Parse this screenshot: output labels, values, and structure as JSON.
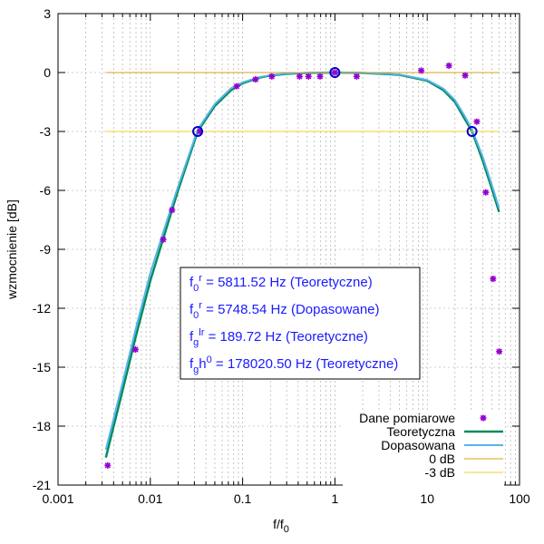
{
  "chart_data": {
    "type": "line",
    "xlabel": "f/f",
    "xlabel_sub": "0",
    "ylabel": "wzmocnienie [dB]",
    "xscale": "log",
    "xlim": [
      0.001,
      100
    ],
    "ylim": [
      -21,
      3
    ],
    "x_ticks": [
      "0.001",
      "0.01",
      "0.1",
      "1",
      "10",
      "100"
    ],
    "y_ticks": [
      "3",
      "0",
      "-3",
      "-6",
      "-9",
      "-12",
      "-15",
      "-18",
      "-21"
    ],
    "grid": true,
    "legend_position": "bottom-right",
    "annotations": [
      {
        "base": "f",
        "sub": "0",
        "sup": "r",
        "text": " = 5811.52 Hz (Teoretyczne)"
      },
      {
        "base": "f",
        "sub": "0",
        "sup": "r",
        "text": " = 5748.54 Hz (Dopasowane)"
      },
      {
        "base": "f",
        "sub": "g",
        "sup": "lr",
        "text": " = 189.72 Hz (Teoretyczne)"
      },
      {
        "base": "f",
        "sub": "g",
        "mid": "h",
        "sup": "0",
        "text": " = 178020.50 Hz (Teoretyczne)"
      }
    ],
    "series": [
      {
        "name": "Dane pomiarowe",
        "kind": "points",
        "color": "#9400d3",
        "points": [
          [
            0.00345,
            -20.0
          ],
          [
            0.0069,
            -14.1
          ],
          [
            0.0138,
            -8.5
          ],
          [
            0.0172,
            -7.0
          ],
          [
            0.0345,
            -3.0
          ],
          [
            0.0862,
            -0.7
          ],
          [
            0.138,
            -0.35
          ],
          [
            0.207,
            -0.2
          ],
          [
            0.414,
            -0.2
          ],
          [
            0.517,
            -0.2
          ],
          [
            0.69,
            -0.2
          ],
          [
            1.0,
            0.0
          ],
          [
            1.72,
            -0.2
          ],
          [
            8.62,
            0.1
          ],
          [
            17.2,
            0.35
          ],
          [
            25.8,
            -0.15
          ],
          [
            34.5,
            -2.5
          ],
          [
            43.1,
            -6.1
          ],
          [
            51.7,
            -10.5
          ],
          [
            60.3,
            -14.2
          ]
        ]
      },
      {
        "name": "Teoretyczna",
        "kind": "line",
        "color": "#008b5a",
        "points": [
          [
            0.0033,
            -19.6
          ],
          [
            0.005,
            -16.2
          ],
          [
            0.007,
            -13.4
          ],
          [
            0.01,
            -10.6
          ],
          [
            0.015,
            -7.9
          ],
          [
            0.02,
            -6.0
          ],
          [
            0.0326,
            -3.0
          ],
          [
            0.05,
            -1.7
          ],
          [
            0.075,
            -0.9
          ],
          [
            0.1,
            -0.55
          ],
          [
            0.15,
            -0.27
          ],
          [
            0.2,
            -0.15
          ],
          [
            0.3,
            -0.07
          ],
          [
            0.5,
            -0.02
          ],
          [
            1.0,
            0.0
          ],
          [
            2.0,
            -0.02
          ],
          [
            5.0,
            -0.12
          ],
          [
            10.0,
            -0.42
          ],
          [
            15.0,
            -0.9
          ],
          [
            20.0,
            -1.5
          ],
          [
            25.0,
            -2.3
          ],
          [
            30.6,
            -3.0
          ],
          [
            40.0,
            -4.5
          ],
          [
            50.0,
            -5.9
          ],
          [
            60.0,
            -7.1
          ]
        ]
      },
      {
        "name": "Dopasowana",
        "kind": "line",
        "color": "#56b4e9",
        "points": [
          [
            0.0033,
            -19.2
          ],
          [
            0.005,
            -15.8
          ],
          [
            0.007,
            -13.0
          ],
          [
            0.01,
            -10.2
          ],
          [
            0.015,
            -7.6
          ],
          [
            0.02,
            -5.8
          ],
          [
            0.0326,
            -2.9
          ],
          [
            0.05,
            -1.6
          ],
          [
            0.075,
            -0.8
          ],
          [
            0.1,
            -0.5
          ],
          [
            0.15,
            -0.24
          ],
          [
            0.2,
            -0.13
          ],
          [
            0.3,
            -0.05
          ],
          [
            0.5,
            -0.01
          ],
          [
            1.0,
            0.0
          ],
          [
            2.0,
            -0.01
          ],
          [
            5.0,
            -0.1
          ],
          [
            10.0,
            -0.38
          ],
          [
            15.0,
            -0.82
          ],
          [
            20.0,
            -1.4
          ],
          [
            25.0,
            -2.15
          ],
          [
            30.6,
            -2.9
          ],
          [
            40.0,
            -4.3
          ],
          [
            50.0,
            -5.7
          ],
          [
            60.0,
            -6.9
          ]
        ]
      },
      {
        "name": "0 dB",
        "kind": "line",
        "color": "#d4a017",
        "points": [
          [
            0.0033,
            0
          ],
          [
            60.0,
            0
          ]
        ]
      },
      {
        "name": "-3 dB",
        "kind": "line",
        "color": "#f0d020",
        "points": [
          [
            0.0033,
            -3
          ],
          [
            60.0,
            -3
          ]
        ]
      }
    ],
    "markers": {
      "color": "#0000cd",
      "points": [
        [
          0.0326,
          -3.0
        ],
        [
          1.0,
          0.0
        ],
        [
          30.6,
          -3.0
        ]
      ]
    }
  }
}
